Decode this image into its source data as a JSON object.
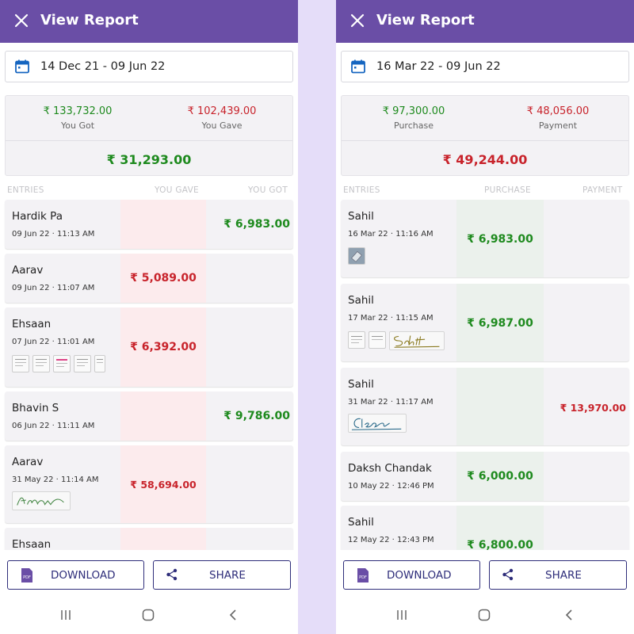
{
  "left": {
    "title": "View Report",
    "date_range": "14 Dec 21 - 09 Jun 22",
    "summary": {
      "amount1": "₹ 133,732.00",
      "label1": "You Got",
      "amount2": "₹ 102,439.00",
      "label2": "You Gave",
      "total": "₹ 31,293.00"
    },
    "columns": {
      "entries": "ENTRIES",
      "col2": "YOU GAVE",
      "col3": "YOU GOT"
    },
    "entries": [
      {
        "name": "Hardik Pa",
        "date": "09 Jun 22 · 11:13 AM",
        "amount": "₹ 6,983.00"
      },
      {
        "name": "Aarav",
        "date": "09 Jun 22 · 11:07 AM",
        "amount": "₹ 5,089.00"
      },
      {
        "name": "Ehsaan",
        "date": "07 Jun 22 · 11:01 AM",
        "amount": "₹ 6,392.00"
      },
      {
        "name": "Bhavin S",
        "date": "06 Jun 22 · 11:11 AM",
        "amount": "₹ 9,786.00"
      },
      {
        "name": "Aarav",
        "date": "31 May 22 · 11:14 AM",
        "amount": "₹ 58,694.00"
      },
      {
        "name": "Ehsaan",
        "date": "",
        "amount": ""
      }
    ],
    "buttons": {
      "download": "DOWNLOAD",
      "share": "SHARE",
      "pdf_badge": "PDF"
    }
  },
  "right": {
    "title": "View Report",
    "date_range": "16 Mar 22 - 09 Jun 22",
    "summary": {
      "amount1": "₹ 97,300.00",
      "label1": "Purchase",
      "amount2": "₹ 48,056.00",
      "label2": "Payment",
      "total": "₹ 49,244.00"
    },
    "columns": {
      "entries": "ENTRIES",
      "col2": "PURCHASE",
      "col3": "PAYMENT"
    },
    "entries": [
      {
        "name": "Sahil",
        "date": "16 Mar 22 · 11:16 AM",
        "amount": "₹ 6,983.00"
      },
      {
        "name": "Sahil",
        "date": "17 Mar 22 · 11:15 AM",
        "amount": "₹ 6,987.00"
      },
      {
        "name": "Sahil",
        "date": "31 Mar 22 · 11:17 AM",
        "amount": "₹ 13,970.00"
      },
      {
        "name": "Daksh Chandak",
        "date": "10 May 22 · 12:46 PM",
        "amount": "₹ 6,000.00"
      },
      {
        "name": "Sahil",
        "date": "12 May 22 · 12:43 PM",
        "amount": "₹ 6,800.00"
      }
    ],
    "buttons": {
      "download": "DOWNLOAD",
      "share": "SHARE",
      "pdf_badge": "PDF"
    }
  },
  "colors": {
    "appbar": "#6a4ea6",
    "green": "#1e8a1e",
    "red": "#c8232b",
    "button_text": "#2e2d7a",
    "background": "#e5ddf9"
  }
}
